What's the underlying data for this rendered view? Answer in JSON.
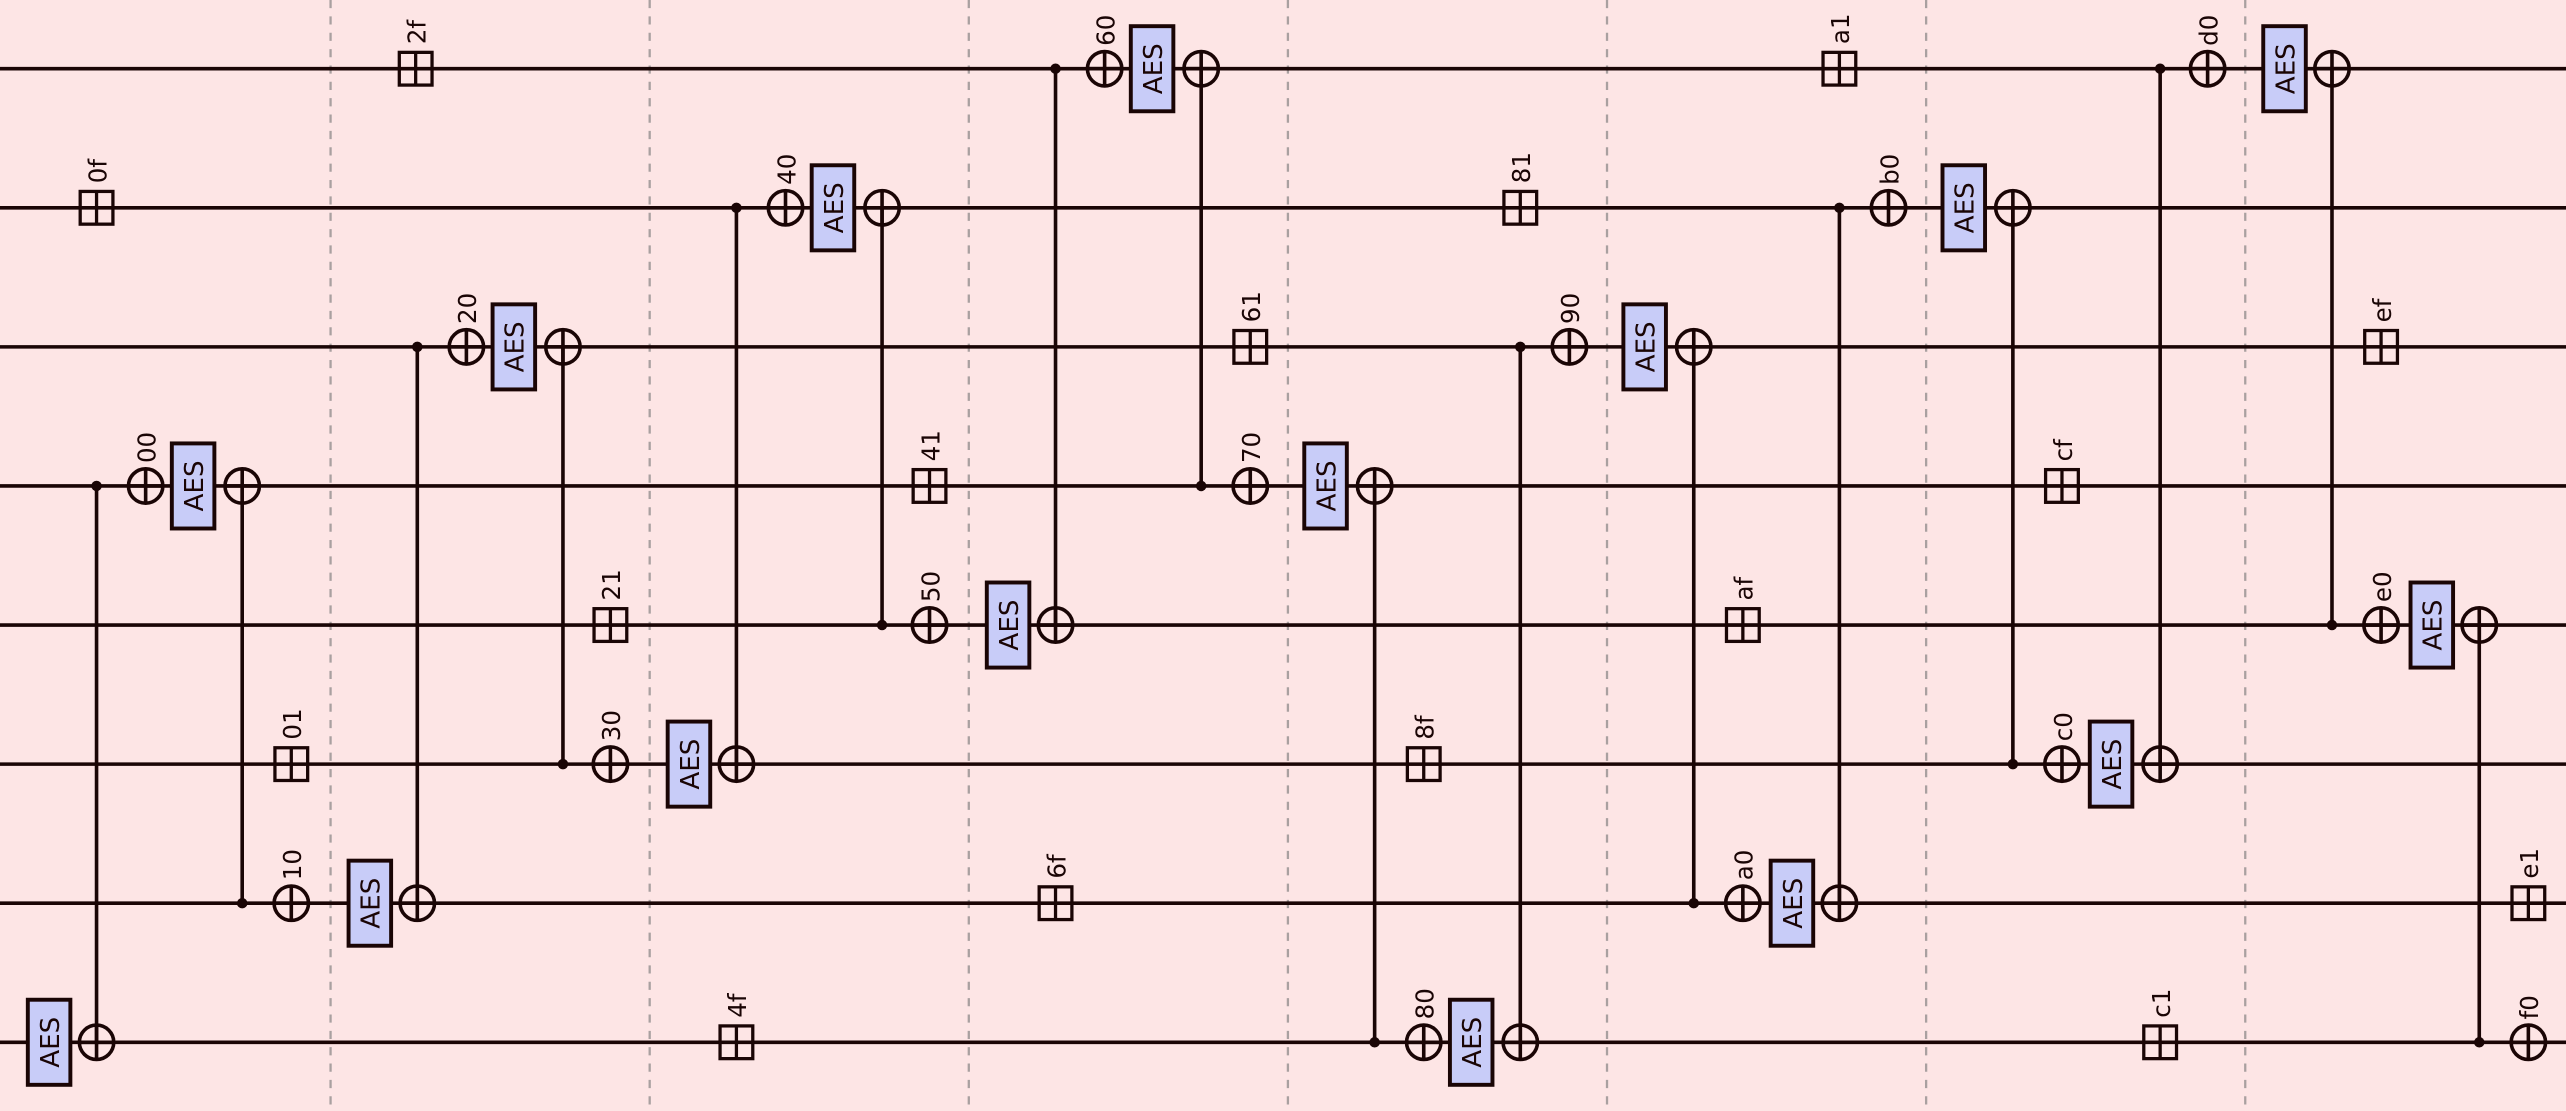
{
  "diagram": {
    "aes_label": "AES",
    "xor_labels": [
      "00",
      "10",
      "20",
      "30",
      "40",
      "50",
      "60",
      "70",
      "80",
      "90",
      "a0",
      "b0",
      "c0",
      "d0",
      "e0",
      "f0"
    ],
    "mix_labels": [
      "0f",
      "01",
      "2f",
      "21",
      "4f",
      "41",
      "6f",
      "61",
      "81",
      "8f",
      "a1",
      "af",
      "c1",
      "cf",
      "e1",
      "ef"
    ],
    "colors": {
      "background": "#fde5e5",
      "aes_fill": "#c8ccf8",
      "line": "#1a0505",
      "separator": "#a9a0a0"
    }
  }
}
